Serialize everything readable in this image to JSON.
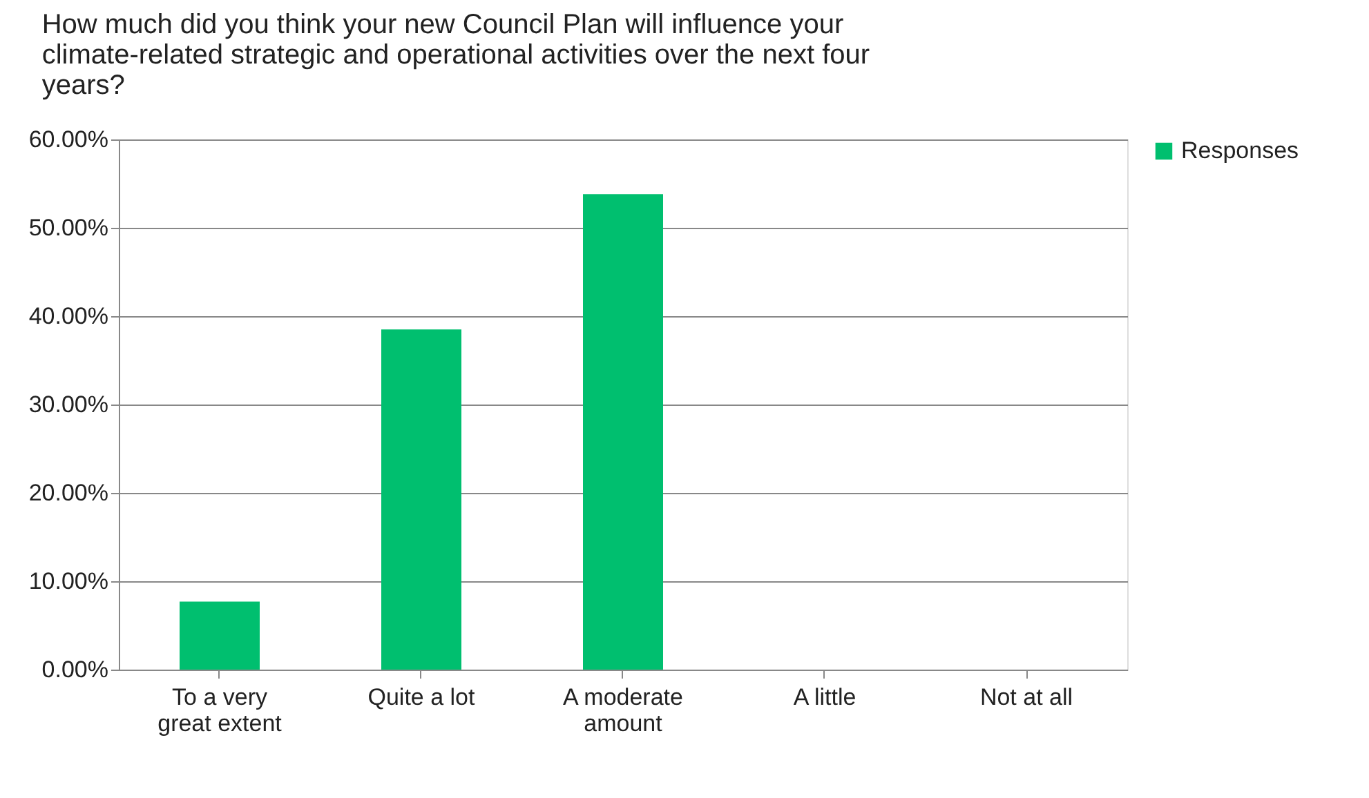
{
  "chart_data": {
    "type": "bar",
    "title": "How much did you think your new Council Plan will influence your climate-related strategic and operational activities over the next four years?",
    "categories": [
      "To a very great extent",
      "Quite a lot",
      "A moderate amount",
      "A little",
      "Not at all"
    ],
    "series": [
      {
        "name": "Responses",
        "color": "#00bf6f",
        "values": [
          7.7,
          38.5,
          53.8,
          0,
          0
        ]
      }
    ],
    "ylim": [
      0,
      60
    ],
    "yticks": [
      {
        "value": 0,
        "label": "0.00%"
      },
      {
        "value": 10,
        "label": "10.00%"
      },
      {
        "value": 20,
        "label": "20.00%"
      },
      {
        "value": 30,
        "label": "30.00%"
      },
      {
        "value": 40,
        "label": "40.00%"
      },
      {
        "value": 50,
        "label": "50.00%"
      },
      {
        "value": 60,
        "label": "60.00%"
      }
    ],
    "grid": "y",
    "legend": "right"
  }
}
